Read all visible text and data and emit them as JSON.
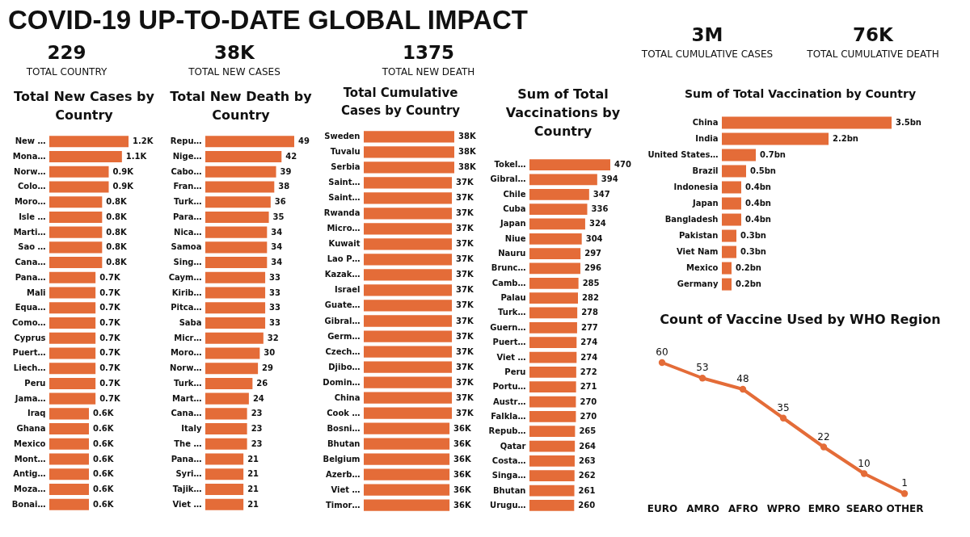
{
  "chart_data": [
    {
      "type": "other",
      "title": "COVID-19 UP-TO-DATE GLOBAL IMPACT"
    },
    {
      "type": "other",
      "title": "229",
      "subtitle": "TOTAL COUNTRY"
    },
    {
      "type": "other",
      "title": "38K",
      "subtitle": "TOTAL NEW CASES"
    },
    {
      "type": "other",
      "title": "1375",
      "subtitle": "TOTAL NEW DEATH"
    },
    {
      "type": "other",
      "title": "3M",
      "subtitle": "TOTAL CUMULATIVE CASES"
    },
    {
      "type": "other",
      "title": "76K",
      "subtitle": "TOTAL CUMULATIVE DEATH"
    },
    {
      "type": "bar",
      "orientation": "horizontal",
      "title": "Total New Cases by Country",
      "color": "#e46c38",
      "categories": [
        "New …",
        "Mona…",
        "Norw…",
        "Colo…",
        "Moro…",
        "Isle …",
        "Marti…",
        "Sao …",
        "Cana…",
        "Pana…",
        "Mali",
        "Equa…",
        "Como…",
        "Cyprus",
        "Puert…",
        "Liech…",
        "Peru",
        "Jama…",
        "Iraq",
        "Ghana",
        "Mexico",
        "Mont…",
        "Antig…",
        "Moza…",
        "Bonai…"
      ],
      "values": [
        1200,
        1100,
        900,
        900,
        800,
        800,
        800,
        800,
        800,
        700,
        700,
        700,
        700,
        700,
        700,
        700,
        700,
        700,
        600,
        600,
        600,
        600,
        600,
        600,
        600
      ],
      "value_labels": [
        "1.2K",
        "1.1K",
        "0.9K",
        "0.9K",
        "0.8K",
        "0.8K",
        "0.8K",
        "0.8K",
        "0.8K",
        "0.7K",
        "0.7K",
        "0.7K",
        "0.7K",
        "0.7K",
        "0.7K",
        "0.7K",
        "0.7K",
        "0.7K",
        "0.6K",
        "0.6K",
        "0.6K",
        "0.6K",
        "0.6K",
        "0.6K",
        "0.6K"
      ]
    },
    {
      "type": "bar",
      "orientation": "horizontal",
      "title": "Total New Death by Country",
      "color": "#e46c38",
      "data_labels": true,
      "categories": [
        "Repu…",
        "Nige…",
        "Cabo…",
        "Fran…",
        "Turk…",
        "Para…",
        "Nica…",
        "Samoa",
        "Sing…",
        "Caym…",
        "Kirib…",
        "Pitca…",
        "Saba",
        "Micr…",
        "Moro…",
        "Norw…",
        "Turk…",
        "Mart…",
        "Cana…",
        "Italy",
        "The …",
        "Pana…",
        "Syri…",
        "Tajik…",
        "Viet …"
      ],
      "values": [
        49,
        42,
        39,
        38,
        36,
        35,
        34,
        34,
        34,
        33,
        33,
        33,
        33,
        32,
        30,
        29,
        26,
        24,
        23,
        23,
        23,
        21,
        21,
        21,
        21
      ]
    },
    {
      "type": "bar",
      "orientation": "horizontal",
      "title": "Total Cumulative Cases by Country",
      "color": "#e46c38",
      "categories": [
        "Sweden",
        "Tuvalu",
        "Serbia",
        "Saint…",
        "Saint…",
        "Rwanda",
        "Micro…",
        "Kuwait",
        "Lao P…",
        "Kazak…",
        "Israel",
        "Guate…",
        "Gibral…",
        "Germ…",
        "Czech…",
        "Djibo…",
        "Domin…",
        "China",
        "Cook …",
        "Bosni…",
        "Bhutan",
        "Belgium",
        "Azerb…",
        "Viet …",
        "Timor…"
      ],
      "values": [
        38000,
        38000,
        38000,
        37000,
        37000,
        37000,
        37000,
        37000,
        37000,
        37000,
        37000,
        37000,
        37000,
        37000,
        37000,
        37000,
        37000,
        37000,
        37000,
        36000,
        36000,
        36000,
        36000,
        36000,
        36000
      ],
      "value_labels": [
        "38K",
        "38K",
        "38K",
        "37K",
        "37K",
        "37K",
        "37K",
        "37K",
        "37K",
        "37K",
        "37K",
        "37K",
        "37K",
        "37K",
        "37K",
        "37K",
        "37K",
        "37K",
        "37K",
        "36K",
        "36K",
        "36K",
        "36K",
        "36K",
        "36K"
      ]
    },
    {
      "type": "bar",
      "orientation": "horizontal",
      "title": "Sum of Total Vaccinations by Country",
      "color": "#e46c38",
      "data_labels": true,
      "categories": [
        "Tokel…",
        "Gibral…",
        "Chile",
        "Cuba",
        "Japan",
        "Niue",
        "Nauru",
        "Brunc…",
        "Camb…",
        "Palau",
        "Turk…",
        "Guern…",
        "Puert…",
        "Viet …",
        "Peru",
        "Portu…",
        "Austr…",
        "Falkla…",
        "Repub…",
        "Qatar",
        "Costa…",
        "Singa…",
        "Bhutan",
        "Urugu…"
      ],
      "values": [
        470,
        394,
        347,
        336,
        324,
        304,
        297,
        296,
        285,
        282,
        278,
        277,
        274,
        274,
        272,
        271,
        270,
        270,
        265,
        264,
        263,
        262,
        261,
        260
      ]
    },
    {
      "type": "bar",
      "orientation": "horizontal",
      "title": "Sum of Total Vaccination by Country",
      "color": "#e46c38",
      "categories": [
        "China",
        "India",
        "United States…",
        "Brazil",
        "Indonesia",
        "Japan",
        "Bangladesh",
        "Pakistan",
        "Viet Nam",
        "Mexico",
        "Germany"
      ],
      "values": [
        3.5,
        2.2,
        0.7,
        0.5,
        0.4,
        0.4,
        0.4,
        0.3,
        0.3,
        0.2,
        0.2
      ],
      "value_labels": [
        "3.5bn",
        "2.2bn",
        "0.7bn",
        "0.5bn",
        "0.4bn",
        "0.4bn",
        "0.4bn",
        "0.3bn",
        "0.3bn",
        "0.2bn",
        "0.2bn"
      ]
    },
    {
      "type": "line",
      "title": "Count of Vaccine Used by WHO Region",
      "color": "#e46c38",
      "marker": "circle",
      "data_labels": true,
      "categories": [
        "EURO",
        "AMRO",
        "AFRO",
        "WPRO",
        "EMRO",
        "SEARO",
        "OTHER"
      ],
      "values": [
        60,
        53,
        48,
        35,
        22,
        10,
        1
      ]
    }
  ]
}
